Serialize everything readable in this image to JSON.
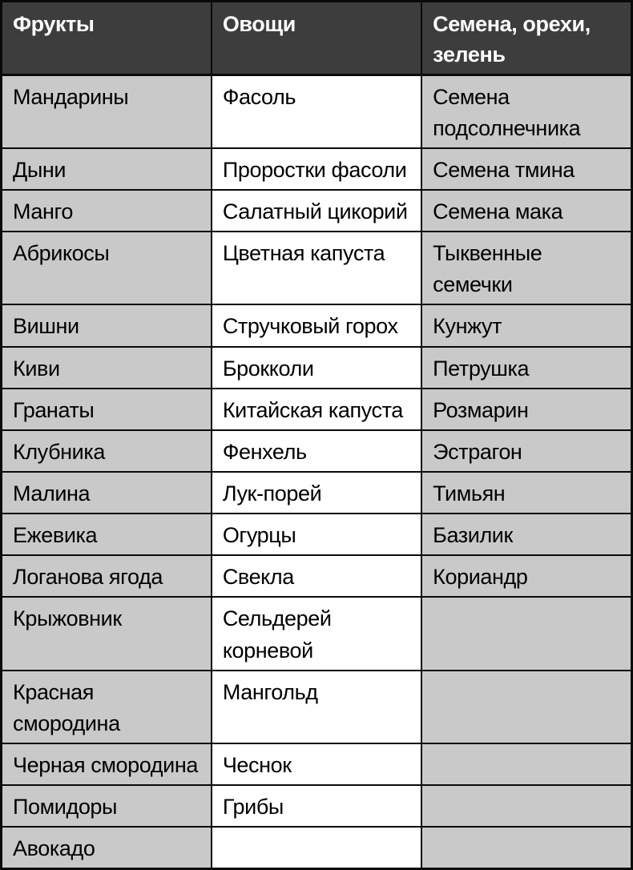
{
  "table": {
    "headers": [
      "Фрукты",
      "Овощи",
      "Семена, орехи, зелень"
    ],
    "rows": [
      [
        "Мандарины",
        "Фасоль",
        "Семена подсолнечника"
      ],
      [
        "Дыни",
        "Проростки фасоли",
        "Семена тмина"
      ],
      [
        "Манго",
        "Салатный цикорий",
        "Семена мака"
      ],
      [
        "Абрикосы",
        "Цветная капуста",
        "Тыквенные семечки"
      ],
      [
        "Вишни",
        "Стручковый горох",
        "Кунжут"
      ],
      [
        "Киви",
        "Брокколи",
        "Петрушка"
      ],
      [
        "Гранаты",
        "Китайская капуста",
        "Розмарин"
      ],
      [
        "Клубника",
        "Фенхель",
        "Эстрагон"
      ],
      [
        "Малина",
        "Лук-порей",
        "Тимьян"
      ],
      [
        "Ежевика",
        "Огурцы",
        "Базилик"
      ],
      [
        "Логанова ягода",
        "Свекла",
        "Кориандр"
      ],
      [
        "Крыжовник",
        "Сельдерей корневой",
        ""
      ],
      [
        "Красная смородина",
        "Мангольд",
        ""
      ],
      [
        "Черная смородина",
        "Чеснок",
        ""
      ],
      [
        "Помидоры",
        "Грибы",
        ""
      ],
      [
        "Авокадо",
        "",
        ""
      ]
    ],
    "column_keys": [
      "fruits",
      "vegetables",
      "seeds-nuts-greens"
    ]
  },
  "colors": {
    "header_bg": "#3d3d3d",
    "header_text": "#ffffff",
    "shaded_cell_bg": "#c9c9c9",
    "white_cell_bg": "#ffffff",
    "border": "#0a0a0a",
    "body_text": "#000000"
  }
}
